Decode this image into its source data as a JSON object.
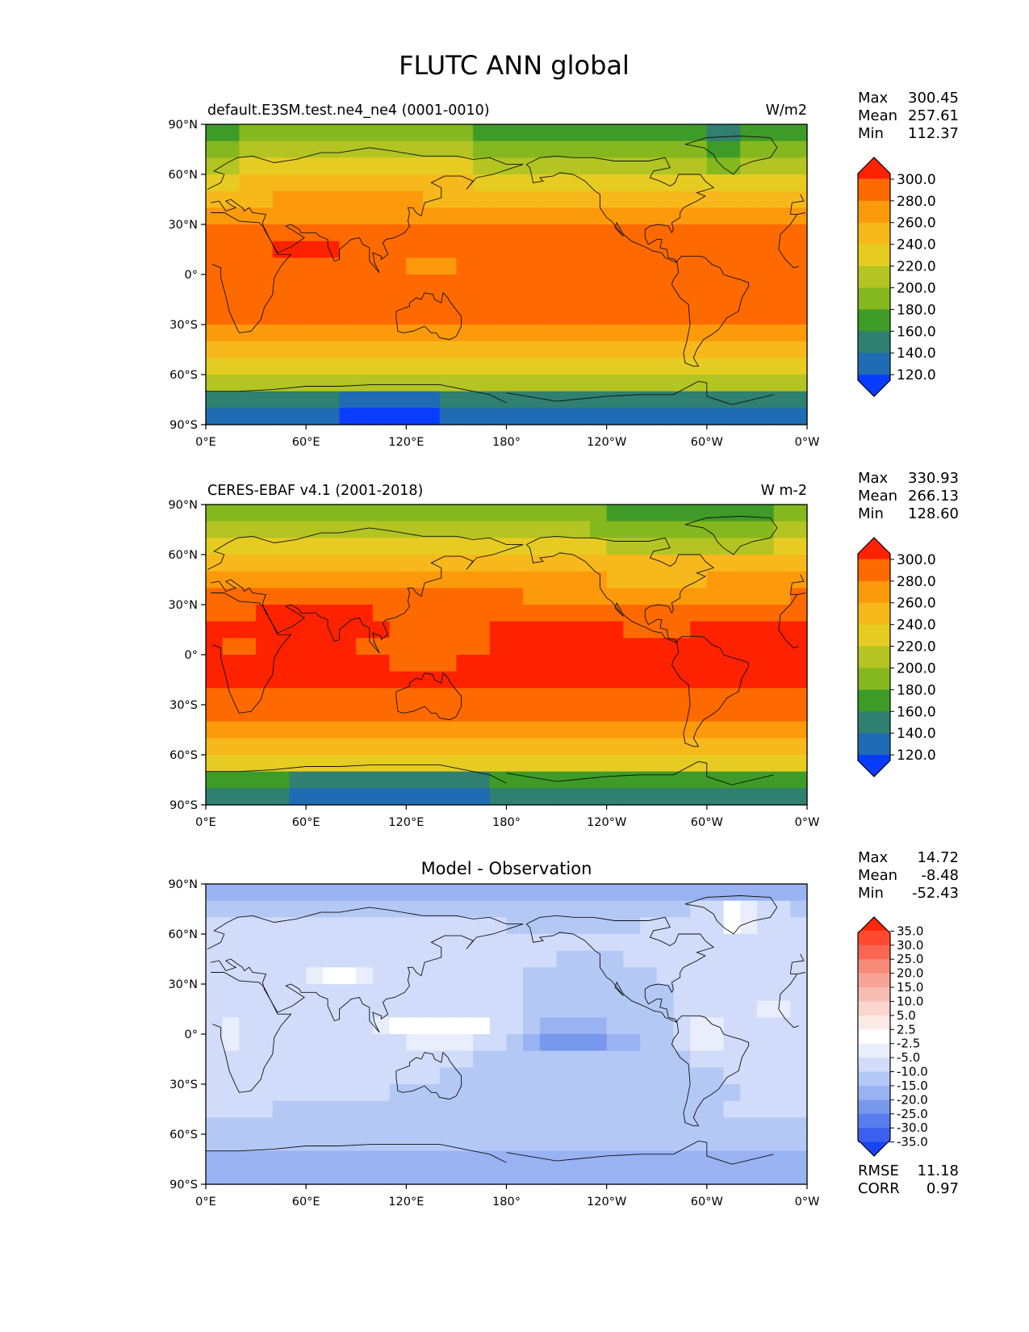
{
  "figure": {
    "title": "FLUTC ANN global"
  },
  "axes": {
    "lat_ticks": [
      "90°N",
      "60°N",
      "30°N",
      "0°",
      "30°S",
      "60°S",
      "90°S"
    ],
    "lon_ticks": [
      "0°E",
      "60°E",
      "120°E",
      "180°",
      "120°W",
      "60°W",
      "0°W"
    ]
  },
  "panels": [
    {
      "id": "test",
      "left_title": "default.E3SM.test.ne4_ne4 (0001-0010)",
      "center_title": "",
      "right_title": "W/m2",
      "stats": [
        {
          "label": "Max",
          "value": "300.45"
        },
        {
          "label": "Mean",
          "value": "257.61"
        },
        {
          "label": "Min",
          "value": "112.37"
        }
      ],
      "colorbar": {
        "labels": [
          "300.0",
          "280.0",
          "260.0",
          "240.0",
          "220.0",
          "200.0",
          "180.0",
          "160.0",
          "140.0",
          "120.0"
        ],
        "colors": [
          "#ff2200",
          "#ff6a00",
          "#fc9a0b",
          "#f7b81c",
          "#e6cc22",
          "#b4c422",
          "#84b81e",
          "#3e9b28",
          "#2f8070",
          "#1f6cb4",
          "#0a3cff"
        ]
      }
    },
    {
      "id": "ref",
      "left_title": "CERES-EBAF v4.1 (2001-2018)",
      "center_title": "",
      "right_title": "W m-2",
      "stats": [
        {
          "label": "Max",
          "value": "330.93"
        },
        {
          "label": "Mean",
          "value": "266.13"
        },
        {
          "label": "Min",
          "value": "128.60"
        }
      ],
      "colorbar": {
        "labels": [
          "300.0",
          "280.0",
          "260.0",
          "240.0",
          "220.0",
          "200.0",
          "180.0",
          "160.0",
          "140.0",
          "120.0"
        ],
        "colors": [
          "#ff2200",
          "#ff6a00",
          "#fc9a0b",
          "#f7b81c",
          "#e6cc22",
          "#b4c422",
          "#84b81e",
          "#3e9b28",
          "#2f8070",
          "#1f6cb4",
          "#0a3cff"
        ]
      }
    },
    {
      "id": "diff",
      "left_title": "",
      "center_title": "Model - Observation",
      "right_title": "",
      "stats": [
        {
          "label": "Max",
          "value": "14.72"
        },
        {
          "label": "Mean",
          "value": "-8.48"
        },
        {
          "label": "Min",
          "value": "-52.43"
        }
      ],
      "metrics": [
        {
          "label": "RMSE",
          "value": "11.18"
        },
        {
          "label": "CORR",
          "value": "0.97"
        }
      ],
      "colorbar": {
        "labels": [
          "35.0",
          "30.0",
          "25.0",
          "20.0",
          "15.0",
          "10.0",
          "5.0",
          "2.5",
          "-2.5",
          "-5.0",
          "-10.0",
          "-15.0",
          "-20.0",
          "-25.0",
          "-30.0",
          "-35.0"
        ],
        "colors": [
          "#ff2a0a",
          "#ff4a30",
          "#fa6652",
          "#f88a78",
          "#f7a496",
          "#f8bdb2",
          "#fad6cf",
          "#fceae6",
          "#ffffff",
          "#e8eefc",
          "#d0dcfa",
          "#b4c8f6",
          "#98b2f2",
          "#7898ee",
          "#587ced",
          "#3c60ee",
          "#1a44f4"
        ]
      }
    }
  ]
}
